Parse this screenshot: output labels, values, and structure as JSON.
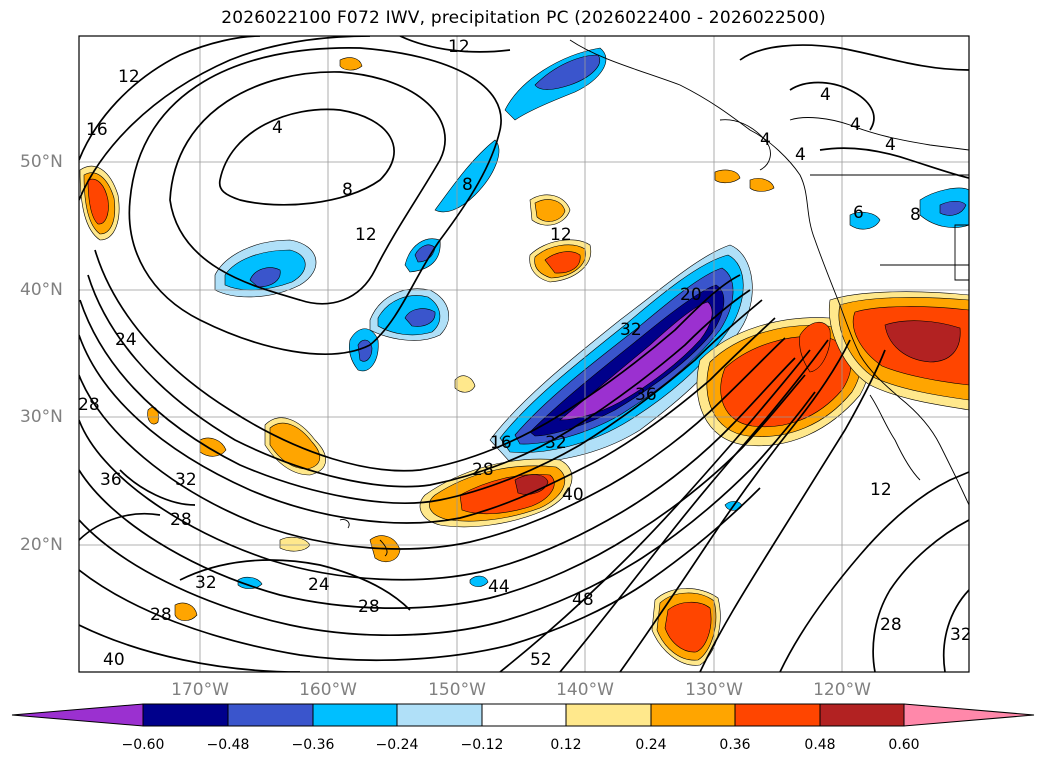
{
  "title": "2026022100 F072 IWV, precipitation PC (2026022400 - 2026022500)",
  "lat_labels": [
    "50°N",
    "40°N",
    "30°N",
    "20°N"
  ],
  "lon_labels": [
    "170°W",
    "160°W",
    "150°W",
    "140°W",
    "130°W",
    "120°W"
  ],
  "colorbar": {
    "ticks": [
      "−0.60",
      "−0.48",
      "−0.36",
      "−0.24",
      "−0.12",
      "0.12",
      "0.24",
      "0.36",
      "0.48",
      "0.60"
    ],
    "colors": [
      "#9b30d0",
      "#00008b",
      "#3a55cc",
      "#00bfff",
      "#b0e0f8",
      "#ffffff",
      "#ffe88c",
      "#ffa500",
      "#ff4500",
      "#b22222",
      "#ff88aa"
    ]
  },
  "contour_labels": [
    "4",
    "8",
    "12",
    "16",
    "20",
    "24",
    "28",
    "32",
    "36",
    "40",
    "44",
    "48",
    "52"
  ]
}
